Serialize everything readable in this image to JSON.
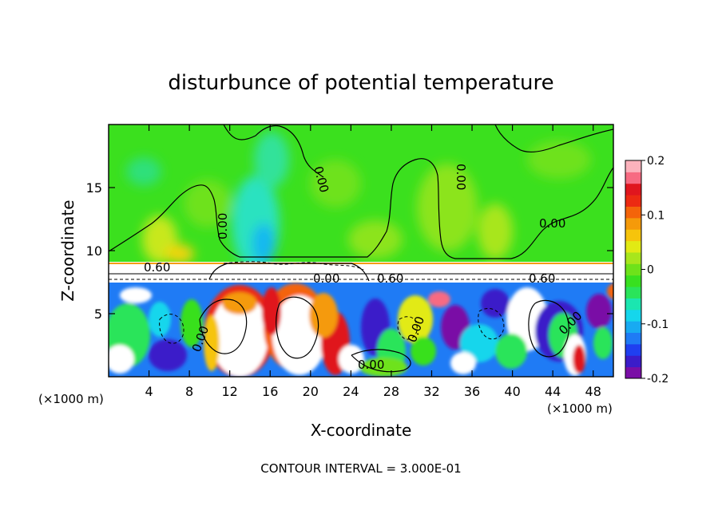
{
  "chart_data": {
    "type": "heatmap",
    "title": "disturbunce of potential temperature",
    "xlabel": "X-coordinate",
    "ylabel": "Z-coordinate",
    "x_unit_left": "(×1000 m)",
    "x_unit_right": "(×1000 m)",
    "xlim": [
      0,
      50
    ],
    "ylim": [
      0,
      20
    ],
    "xticks": [
      4,
      8,
      12,
      16,
      20,
      24,
      28,
      32,
      36,
      40,
      44,
      48
    ],
    "yticks": [
      5,
      10,
      15
    ],
    "footer": "CONTOUR INTERVAL = 3.000E-01",
    "colorbar": {
      "range": [
        -0.2,
        0.2
      ],
      "ticks": [
        "0.2",
        "0.1",
        "0",
        "-0.1",
        "-0.2"
      ],
      "colors": [
        "#7a0ea6",
        "#3b1cc9",
        "#1f3ff0",
        "#1f7bf5",
        "#18aaf2",
        "#15d6ec",
        "#1be6b0",
        "#2ae45a",
        "#38e01f",
        "#6ee21a",
        "#a8e61c",
        "#e2ea14",
        "#f6c40c",
        "#f59a0a",
        "#f4640a",
        "#ec2a12",
        "#e0161e",
        "#f76b82",
        "#fbb2bc"
      ]
    },
    "contour_labels": [
      "0.60",
      "0.00",
      "0.00",
      "0.00",
      "0.00",
      "0.60",
      "0.00",
      "0.60",
      "0.00",
      "0.00",
      "0.00",
      "0.00"
    ],
    "regions": [
      {
        "x": [
          0,
          50
        ],
        "z": [
          9,
          20
        ],
        "value": 0.0,
        "description_value": "near zero"
      },
      {
        "x": [
          0,
          50
        ],
        "z": [
          0,
          7.5
        ],
        "value_range": [
          -0.2,
          0.2
        ]
      }
    ]
  }
}
